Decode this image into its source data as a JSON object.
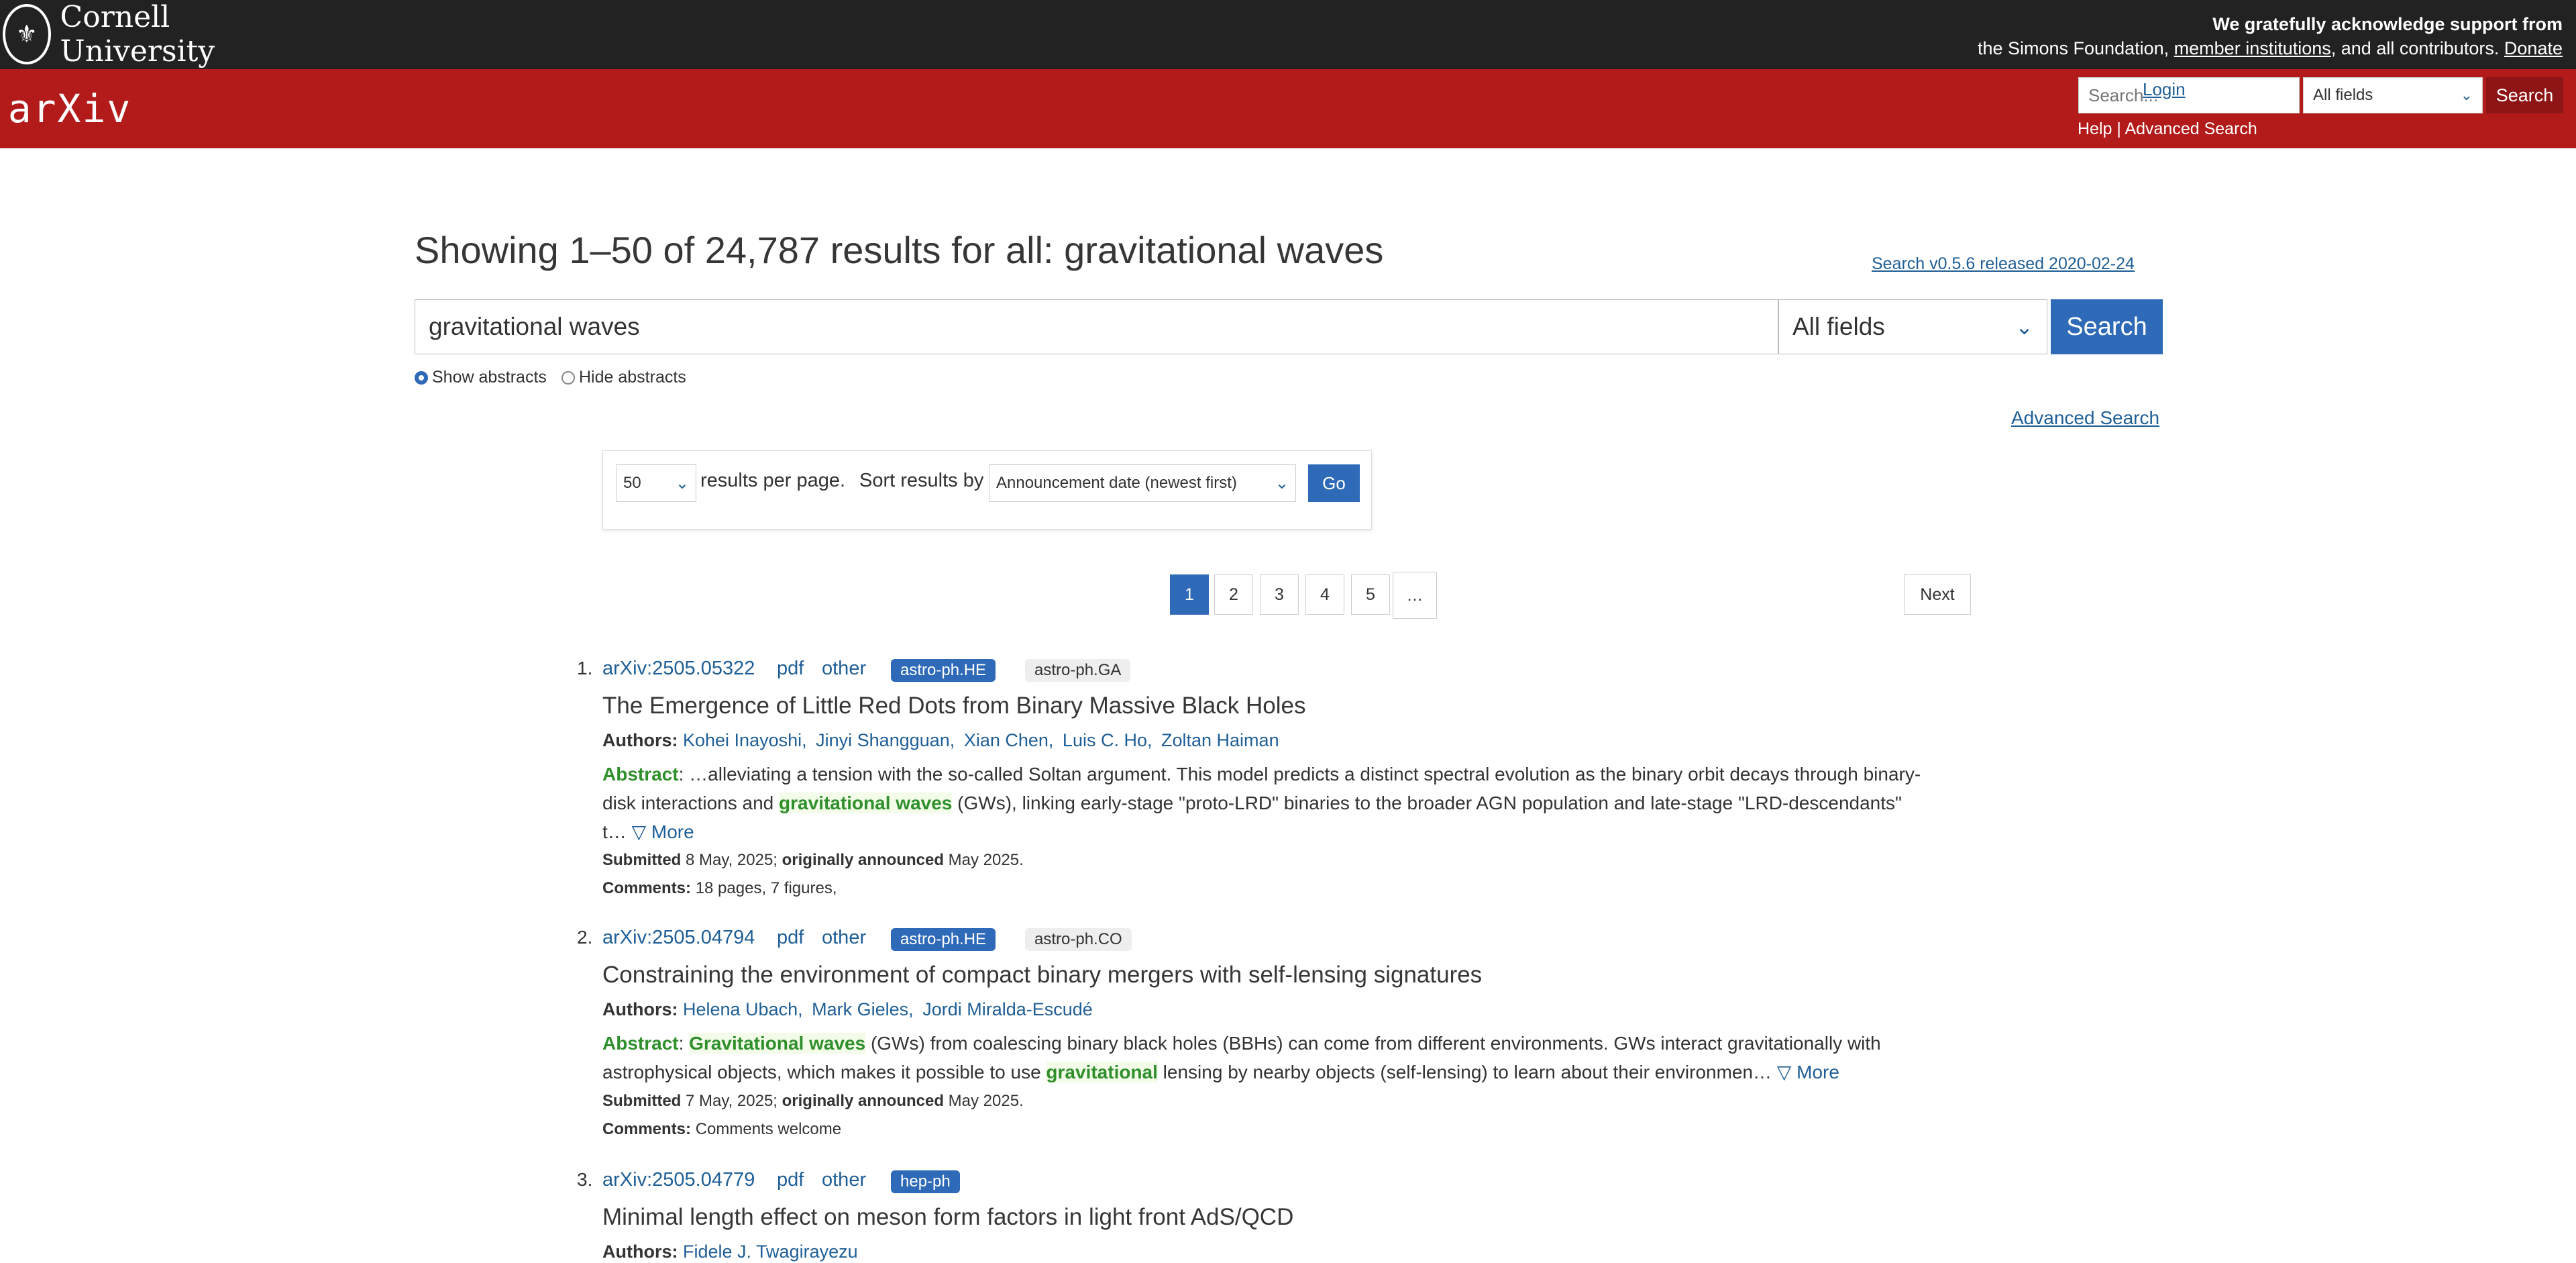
{
  "topbar": {
    "cornell_name": "Cornell University",
    "ack_line1": "We gratefully acknowledge support from",
    "ack_line2_pre": "the Simons Foundation,",
    "ack_member_link": "member institutions",
    "ack_line2_post": ", and all contributors.",
    "donate": "Donate"
  },
  "header": {
    "logo": "arXiv",
    "search_placeholder": "Search...",
    "field_selected": "All fields",
    "search_button": "Search",
    "help": "Help",
    "separator": "|",
    "advanced_search": "Advanced Search",
    "login": "Login"
  },
  "main": {
    "title": "Showing 1–50 of 24,787 results for all: gravitational waves",
    "release_link": "Search v0.5.6 released 2020-02-24",
    "query": "gravitational waves",
    "field_selected": "All fields",
    "search_button": "Search",
    "show_abstracts": "Show abstracts",
    "hide_abstracts": "Hide abstracts",
    "advanced_search": "Advanced Search",
    "per_page": "50",
    "per_page_label": "results per page.",
    "sort_label": "Sort results by",
    "sort_selected": "Announcement date (newest first)",
    "go": "Go",
    "pages": [
      "1",
      "2",
      "3",
      "4",
      "5",
      "…"
    ],
    "next": "Next"
  },
  "results": [
    {
      "num": "1.",
      "id": "arXiv:2505.05322",
      "pdf": "pdf",
      "other": "other",
      "primary": "astro-ph.HE",
      "secondary": "astro-ph.GA",
      "title": "The Emergence of Little Red Dots from Binary Massive Black Holes",
      "authors_label": "Authors:",
      "authors": [
        "Kohei Inayoshi,",
        "Jinyi Shangguan,",
        "Xian Chen,",
        "Luis C. Ho,",
        "Zoltan Haiman"
      ],
      "abstract_label": "Abstract",
      "abstract_a": ": …alleviating a tension with the so-called Soltan argument. This model predicts a distinct spectral evolution as the binary orbit decays through binary-disk interactions and ",
      "abstract_hl": "gravitational waves",
      "abstract_b": " (GWs), linking early-stage \"proto-LRD\" binaries to the broader AGN population and late-stage \"LRD-descendants\" t… ",
      "more": "▽ More",
      "submitted_label": "Submitted",
      "submitted": "8 May, 2025;",
      "announced_label": "originally announced",
      "announced": "May 2025.",
      "comments_label": "Comments:",
      "comments": "18 pages, 7 figures,"
    },
    {
      "num": "2.",
      "id": "arXiv:2505.04794",
      "pdf": "pdf",
      "other": "other",
      "primary": "astro-ph.HE",
      "secondary": "astro-ph.CO",
      "title": "Constraining the environment of compact binary mergers with self-lensing signatures",
      "authors_label": "Authors:",
      "authors": [
        "Helena Ubach,",
        "Mark Gieles,",
        "Jordi Miralda-Escudé"
      ],
      "abstract_label": "Abstract",
      "abstract_hl1": "Gravitational waves",
      "abstract_a": " (GWs) from coalescing binary black holes (BBHs) can come from different environments. GWs interact gravitationally with astrophysical objects, which makes it possible to use ",
      "abstract_hl2": "gravitational",
      "abstract_b": " lensing by nearby objects (self-lensing) to learn about their environmen… ",
      "more": "▽ More",
      "submitted_label": "Submitted",
      "submitted": "7 May, 2025;",
      "announced_label": "originally announced",
      "announced": "May 2025.",
      "comments_label": "Comments:",
      "comments": "Comments welcome"
    },
    {
      "num": "3.",
      "id": "arXiv:2505.04779",
      "pdf": "pdf",
      "other": "other",
      "primary": "hep-ph",
      "title": "Minimal length effect on meson form factors in light front AdS/QCD",
      "authors_label": "Authors:",
      "authors": [
        "Fidele J. Twagirayezu"
      ]
    }
  ]
}
